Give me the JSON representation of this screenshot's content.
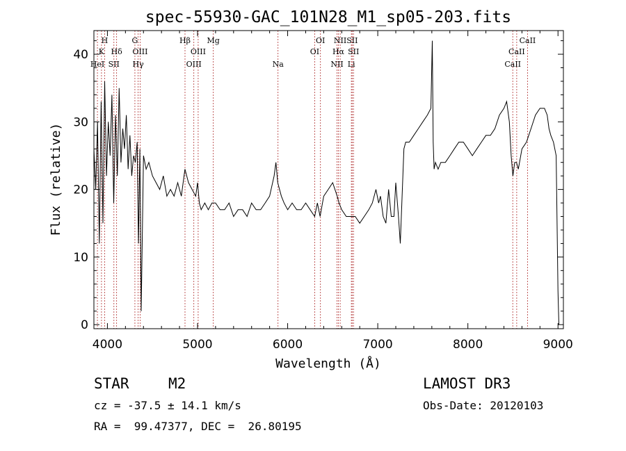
{
  "chart_data": {
    "type": "line",
    "title": "spec-55930-GAC_101N28_M1_sp05-203.fits",
    "xlabel": "Wavelength (Å)",
    "ylabel": "Flux (relative)",
    "xlim": [
      3850,
      9060
    ],
    "ylim": [
      -0.6,
      43.5
    ],
    "xticks": [
      4000,
      5000,
      6000,
      7000,
      8000,
      9000
    ],
    "yticks": [
      0,
      10,
      20,
      30,
      40
    ],
    "series": [
      {
        "name": "flux",
        "x": [
          3850,
          3870,
          3890,
          3910,
          3930,
          3950,
          3970,
          3990,
          4010,
          4030,
          4050,
          4070,
          4090,
          4110,
          4130,
          4150,
          4170,
          4190,
          4210,
          4230,
          4250,
          4270,
          4290,
          4310,
          4330,
          4345,
          4360,
          4375,
          4400,
          4430,
          4460,
          4500,
          4540,
          4580,
          4620,
          4660,
          4700,
          4740,
          4780,
          4820,
          4860,
          4900,
          4940,
          4980,
          5000,
          5020,
          5040,
          5080,
          5120,
          5160,
          5200,
          5250,
          5300,
          5350,
          5400,
          5450,
          5500,
          5550,
          5600,
          5650,
          5700,
          5750,
          5800,
          5850,
          5870,
          5890,
          5910,
          5930,
          5960,
          6000,
          6050,
          6100,
          6150,
          6200,
          6250,
          6300,
          6330,
          6360,
          6400,
          6450,
          6500,
          6550,
          6570,
          6600,
          6650,
          6700,
          6750,
          6800,
          6850,
          6900,
          6940,
          6980,
          7010,
          7030,
          7060,
          7090,
          7120,
          7150,
          7180,
          7200,
          7230,
          7250,
          7270,
          7290,
          7310,
          7350,
          7400,
          7450,
          7500,
          7550,
          7590,
          7605,
          7615,
          7625,
          7640,
          7670,
          7700,
          7750,
          7800,
          7850,
          7900,
          7950,
          8000,
          8050,
          8100,
          8150,
          8200,
          8250,
          8300,
          8350,
          8400,
          8430,
          8460,
          8480,
          8500,
          8520,
          8540,
          8560,
          8600,
          8650,
          8700,
          8750,
          8800,
          8850,
          8880,
          8900,
          8920,
          8950,
          8980,
          9000,
          9010
        ],
        "y": [
          26,
          20,
          30,
          12,
          33,
          15,
          36,
          22,
          30,
          25,
          34,
          18,
          31,
          22,
          35,
          24,
          29,
          26,
          31,
          23,
          28,
          22,
          25,
          24,
          27,
          12,
          26,
          2,
          25,
          23,
          24,
          22,
          21,
          20,
          22,
          19,
          20,
          19,
          21,
          19,
          23,
          21,
          20,
          19,
          21,
          18,
          17,
          18,
          17,
          18,
          18,
          17,
          17,
          18,
          16,
          17,
          17,
          16,
          18,
          17,
          17,
          18,
          19,
          22,
          24,
          21,
          20,
          19,
          18,
          17,
          18,
          17,
          17,
          18,
          17,
          16,
          18,
          16,
          19,
          20,
          21,
          19,
          18,
          17,
          16,
          16,
          16,
          15,
          16,
          17,
          18,
          20,
          18,
          19,
          16,
          15,
          20,
          16,
          16,
          21,
          16,
          12,
          19,
          26,
          27,
          27,
          28,
          29,
          30,
          31,
          32,
          42,
          27,
          23,
          24,
          23,
          24,
          24,
          25,
          26,
          27,
          27,
          26,
          25,
          26,
          27,
          28,
          28,
          29,
          31,
          32,
          33,
          30,
          25,
          22,
          24,
          24,
          23,
          26,
          27,
          29,
          31,
          32,
          32,
          31,
          29,
          28,
          27,
          25,
          5,
          0
        ]
      }
    ],
    "lines": [
      {
        "x": 3889,
        "label": "HeI",
        "row": 3
      },
      {
        "x": 3934,
        "label": "K",
        "row": 2
      },
      {
        "x": 3969,
        "label": "H",
        "row": 1
      },
      {
        "x": 4072,
        "label": "SII",
        "row": 3
      },
      {
        "x": 4102,
        "label": "Hδ",
        "row": 2
      },
      {
        "x": 4305,
        "label": "G",
        "row": 1
      },
      {
        "x": 4341,
        "label": "Hγ",
        "row": 3
      },
      {
        "x": 4363,
        "label": "OIII",
        "row": 2
      },
      {
        "x": 4861,
        "label": "Hβ",
        "row": 1
      },
      {
        "x": 4959,
        "label": "OIII",
        "row": 3
      },
      {
        "x": 5007,
        "label": "OIII",
        "row": 2
      },
      {
        "x": 5175,
        "label": "Mg",
        "row": 1
      },
      {
        "x": 5893,
        "label": "Na",
        "row": 3
      },
      {
        "x": 6300,
        "label": "OI",
        "row": 2
      },
      {
        "x": 6364,
        "label": "OI",
        "row": 1
      },
      {
        "x": 6548,
        "label": "NII",
        "row": 3
      },
      {
        "x": 6563,
        "label": "Hα",
        "row": 2
      },
      {
        "x": 6583,
        "label": "NII",
        "row": 1
      },
      {
        "x": 6707,
        "label": "Li",
        "row": 3
      },
      {
        "x": 6716,
        "label": "SII",
        "row": 1
      },
      {
        "x": 6731,
        "label": "SII",
        "row": 2
      },
      {
        "x": 8498,
        "label": "CaII",
        "row": 3
      },
      {
        "x": 8542,
        "label": "CaII",
        "row": 2
      },
      {
        "x": 8662,
        "label": "CaII",
        "row": 1
      }
    ]
  },
  "info": {
    "class": "STAR",
    "subclass": "M2",
    "survey": "LAMOST DR3",
    "cz": "cz = -37.5 ± 14.1 km/s",
    "obs_date": "Obs-Date: 20120103",
    "radec": "RA =  99.47377, DEC =  26.80195"
  }
}
